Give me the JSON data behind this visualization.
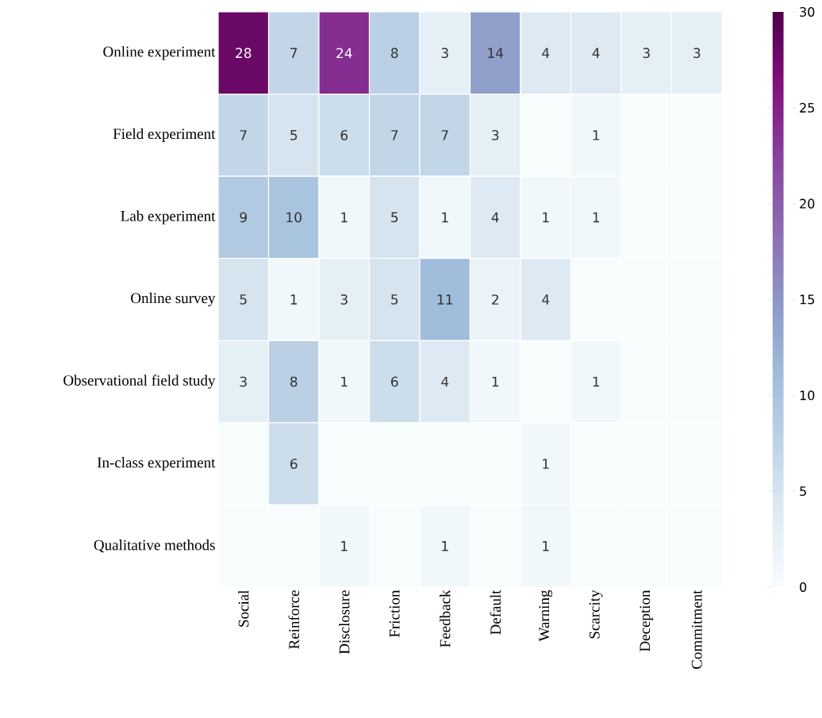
{
  "chart_data": {
    "type": "heatmap",
    "categories": [
      "Social",
      "Reinforce",
      "Disclosure",
      "Friction",
      "Feedback",
      "Default",
      "Warning",
      "Scarcity",
      "Deception",
      "Commitment"
    ],
    "y_categories": [
      "Online experiment",
      "Field experiment",
      "Lab experiment",
      "Online survey",
      "Observational field study",
      "In-class experiment",
      "Qualitative methods"
    ],
    "cells": [
      [
        28,
        7,
        24,
        8,
        3,
        14,
        4,
        4,
        3,
        3
      ],
      [
        7,
        5,
        6,
        7,
        7,
        3,
        0,
        1,
        0,
        0
      ],
      [
        9,
        10,
        1,
        5,
        1,
        4,
        1,
        1,
        0,
        0
      ],
      [
        5,
        1,
        3,
        5,
        11,
        2,
        4,
        0,
        0,
        0
      ],
      [
        3,
        8,
        1,
        6,
        4,
        1,
        0,
        1,
        0,
        0
      ],
      [
        0,
        6,
        0,
        0,
        0,
        0,
        1,
        0,
        0,
        0
      ],
      [
        0,
        0,
        1,
        0,
        1,
        0,
        1,
        0,
        0,
        0
      ]
    ],
    "cell_labels": [
      [
        "28",
        "7",
        "24",
        "8",
        "3",
        "14",
        "4",
        "4",
        "3",
        "3"
      ],
      [
        "7",
        "5",
        "6",
        "7",
        "7",
        "3",
        null,
        "1",
        null,
        null
      ],
      [
        "9",
        "10",
        "1",
        "5",
        "1",
        "4",
        "1",
        "1",
        null,
        null
      ],
      [
        "5",
        "1",
        "3",
        "5",
        "11",
        "2",
        "4",
        null,
        null,
        null
      ],
      [
        "3",
        "8",
        "1",
        "6",
        "4",
        "1",
        null,
        "1",
        null,
        null
      ],
      [
        null,
        "6",
        null,
        null,
        null,
        null,
        "1",
        null,
        null,
        null
      ],
      [
        null,
        null,
        "1",
        null,
        "1",
        null,
        "1",
        null,
        null,
        null
      ]
    ],
    "clim": [
      0,
      30
    ],
    "cticks": [
      0,
      5,
      10,
      15,
      20,
      25,
      30
    ]
  }
}
